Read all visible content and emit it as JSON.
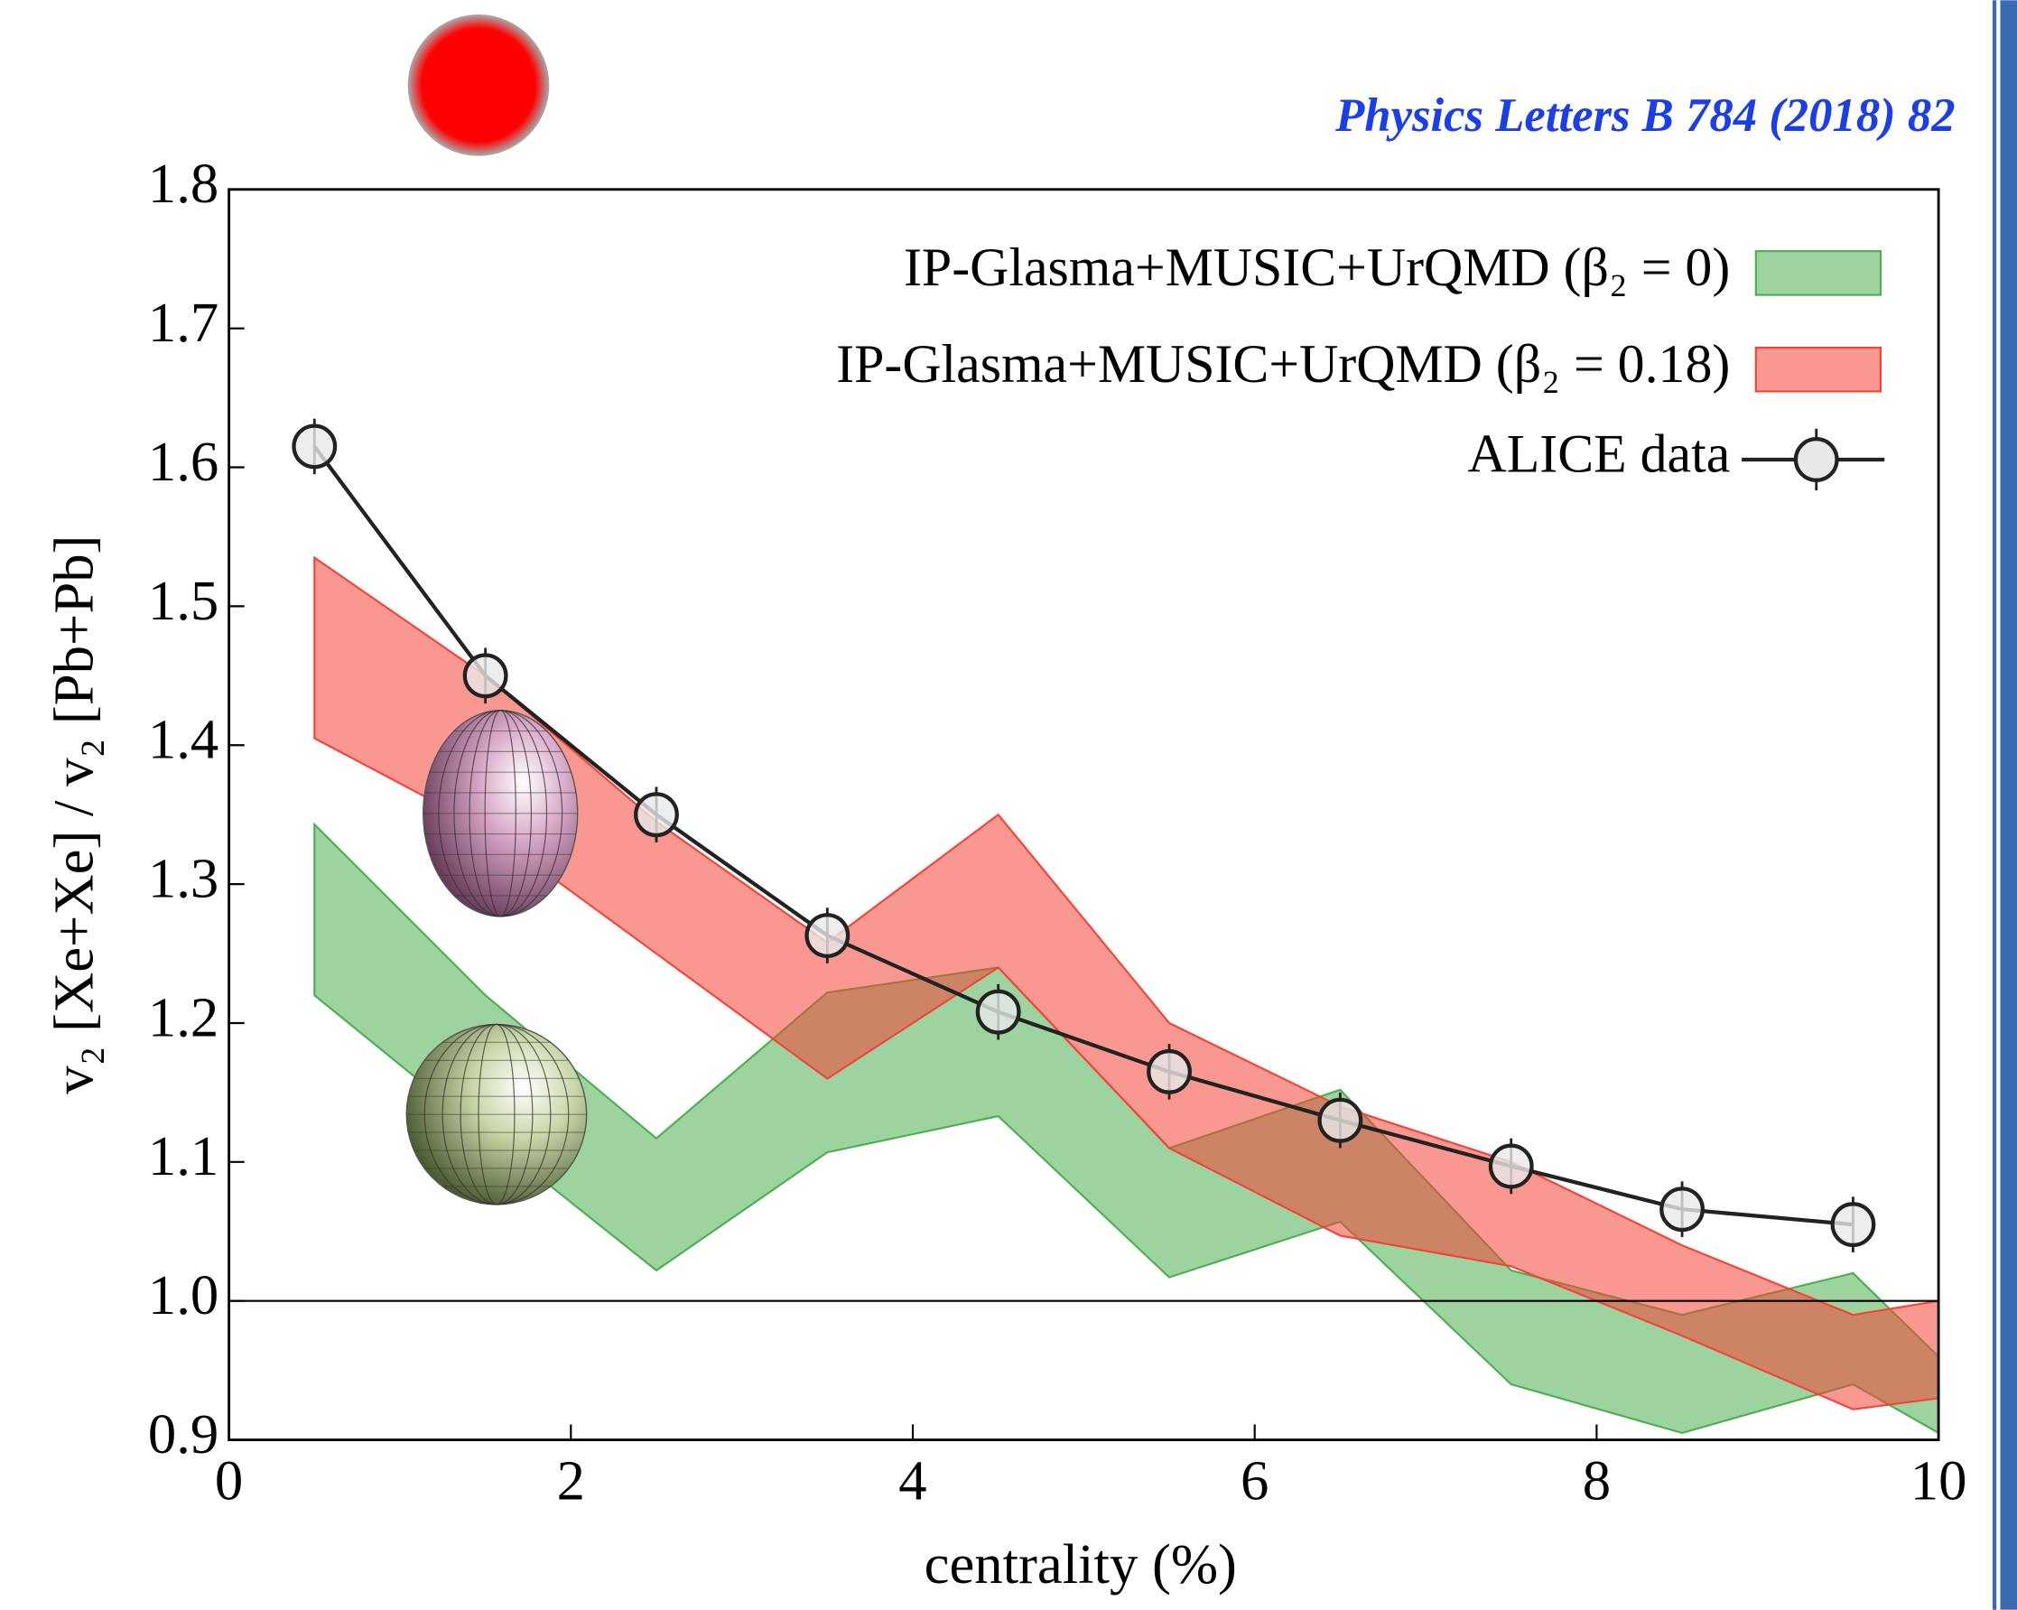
{
  "chart_data": {
    "type": "band-line",
    "citation": "Physics Letters B 784 (2018) 82",
    "xlabel": "centrality (%)",
    "ylabel": "v₂ [Xe+Xe] / v₂ [Pb+Pb]",
    "xlim": [
      0,
      10
    ],
    "ylim": [
      0.9,
      1.8
    ],
    "xticks": [
      0,
      2,
      4,
      6,
      8,
      10
    ],
    "yticks": [
      0.9,
      {
        "value": 1.0,
        "label": "1.0"
      },
      1.1,
      1.2,
      1.3,
      1.4,
      1.5,
      1.6,
      1.7,
      1.8
    ],
    "hline": 1.0,
    "bands": [
      {
        "name": "IP-Glasma+MUSIC+UrQMD (β₂ = 0)",
        "color": "#4caf50",
        "x": [
          0.5,
          1.5,
          2.5,
          3.5,
          4.5,
          5.5,
          6.5,
          7.5,
          8.5,
          9.5,
          10
        ],
        "upper": [
          1.343,
          1.22,
          1.117,
          1.222,
          1.24,
          1.11,
          1.152,
          1.022,
          0.99,
          1.02,
          0.96
        ],
        "lower": [
          1.22,
          1.12,
          1.022,
          1.107,
          1.133,
          1.017,
          1.057,
          0.94,
          0.905,
          0.94,
          0.905
        ]
      },
      {
        "name": "IP-Glasma+MUSIC+UrQMD (β₂ = 0.18)",
        "color": "#f44336",
        "x": [
          0.5,
          1.5,
          2.5,
          3.5,
          4.5,
          5.5,
          6.5,
          7.5,
          8.5,
          9.5,
          10
        ],
        "upper": [
          1.535,
          1.45,
          1.345,
          1.258,
          1.35,
          1.2,
          1.14,
          1.1,
          1.04,
          0.99,
          1.0
        ],
        "lower": [
          1.405,
          1.34,
          1.25,
          1.16,
          1.24,
          1.11,
          1.047,
          1.025,
          0.975,
          0.922,
          0.93
        ]
      }
    ],
    "series": [
      {
        "name": "ALICE data",
        "color": "#222222",
        "x": [
          0.5,
          1.5,
          2.5,
          3.5,
          4.5,
          5.5,
          6.5,
          7.5,
          8.5,
          9.5
        ],
        "values": [
          1.615,
          1.45,
          1.35,
          1.263,
          1.208,
          1.165,
          1.13,
          1.097,
          1.066,
          1.055
        ],
        "errors": [
          0.02,
          0.02,
          0.02,
          0.02,
          0.02,
          0.02,
          0.02,
          0.02,
          0.02,
          0.02
        ]
      }
    ]
  }
}
